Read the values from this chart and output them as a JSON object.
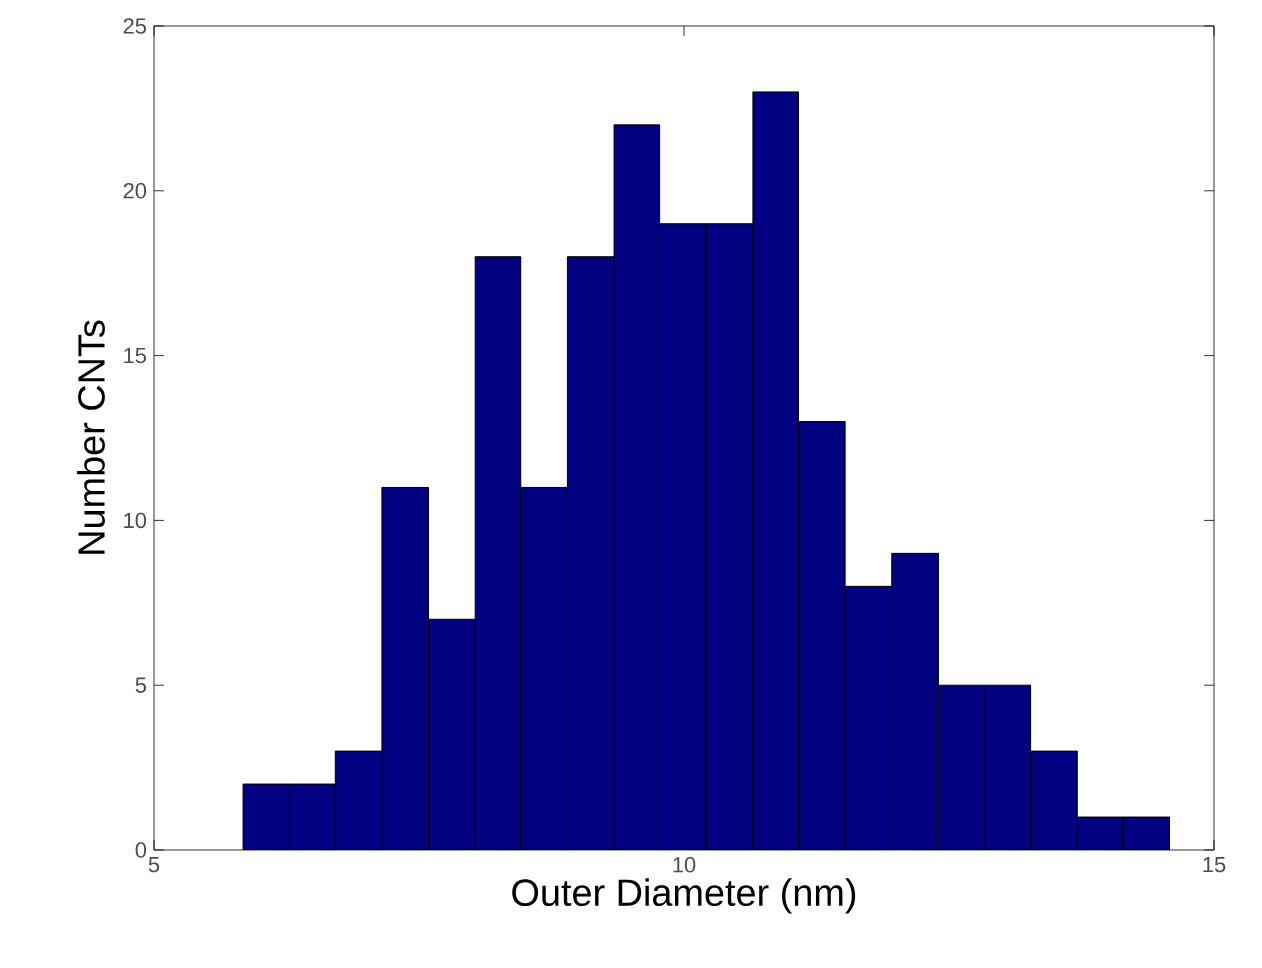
{
  "chart_data": {
    "type": "histogram",
    "xlabel": "Outer Diameter (nm)",
    "ylabel": "Number CNTs",
    "bins": [
      5.84,
      6.28,
      6.71,
      7.15,
      7.59,
      8.03,
      8.46,
      8.9,
      9.34,
      9.77,
      10.21,
      10.65,
      11.08,
      11.52,
      11.96,
      12.4,
      12.83,
      13.27,
      13.71,
      14.14,
      14.58
    ],
    "values": [
      2,
      2,
      3,
      11,
      7,
      18,
      11,
      18,
      22,
      19,
      19,
      23,
      13,
      8,
      9,
      5,
      5,
      3,
      1,
      1
    ],
    "color": "#000080",
    "xlim": [
      5,
      15
    ],
    "xticks": [
      5,
      10,
      15
    ],
    "ylim": [
      0,
      25
    ],
    "yticks": [
      0,
      5,
      10,
      15,
      20,
      25
    ],
    "grid": false
  }
}
